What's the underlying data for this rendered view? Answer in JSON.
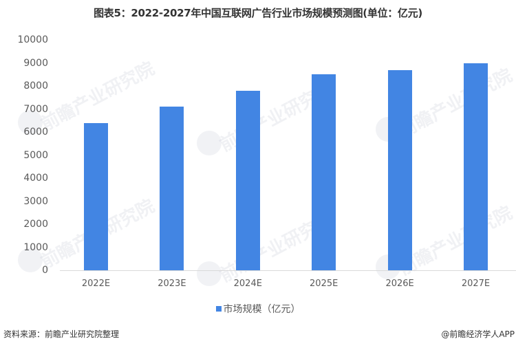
{
  "title": "图表5：2022-2027年中国互联网广告行业市场规模预测图(单位：亿元)",
  "chart_data": {
    "type": "bar",
    "title": "图表5：2022-2027年中国互联网广告行业市场规模预测图(单位：亿元)",
    "xlabel": "",
    "ylabel": "",
    "categories": [
      "2022E",
      "2023E",
      "2024E",
      "2025E",
      "2026E",
      "2027E"
    ],
    "series": [
      {
        "name": "市场规模（亿元）",
        "values": [
          6400,
          7100,
          7800,
          8500,
          8700,
          9000
        ],
        "color": "#4285e3"
      }
    ],
    "ylim": [
      0,
      10000
    ],
    "yticks": [
      0,
      1000,
      2000,
      3000,
      4000,
      5000,
      6000,
      7000,
      8000,
      9000,
      10000
    ],
    "grid": false,
    "legend_position": "bottom"
  },
  "legend": {
    "label": "市场规模（亿元）",
    "color": "#4285e3"
  },
  "footer": {
    "source": "资料来源：前瞻产业研究院整理",
    "credit": "@前瞻经济学人APP"
  },
  "watermark": {
    "text": "前瞻产业研究院"
  }
}
